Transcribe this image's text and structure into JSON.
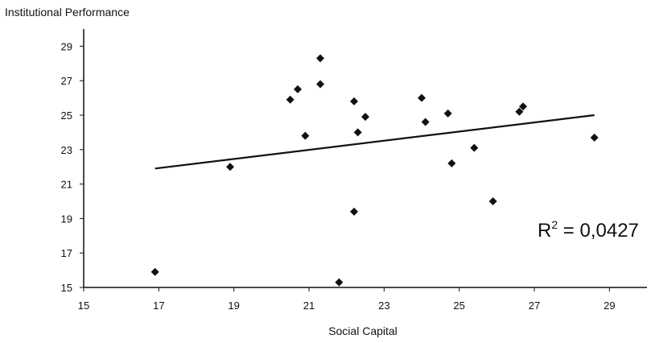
{
  "chart_data": {
    "type": "scatter",
    "title": "",
    "ylabel": "Institutional Performance",
    "xlabel": "Social Capital",
    "xlim": [
      15,
      30
    ],
    "ylim": [
      15,
      30
    ],
    "x_ticks": [
      "15",
      "17",
      "19",
      "21",
      "23",
      "25",
      "27",
      "29"
    ],
    "y_ticks": [
      "15",
      "17",
      "19",
      "21",
      "23",
      "25",
      "27",
      "29"
    ],
    "grid": false,
    "marker": "diamond",
    "marker_color": "#111111",
    "points": [
      {
        "x": 16.9,
        "y": 15.9
      },
      {
        "x": 18.9,
        "y": 22.0
      },
      {
        "x": 20.5,
        "y": 25.9
      },
      {
        "x": 20.7,
        "y": 26.5
      },
      {
        "x": 20.9,
        "y": 23.8
      },
      {
        "x": 21.3,
        "y": 28.3
      },
      {
        "x": 21.3,
        "y": 26.8
      },
      {
        "x": 21.8,
        "y": 15.3
      },
      {
        "x": 22.2,
        "y": 25.8
      },
      {
        "x": 22.2,
        "y": 19.4
      },
      {
        "x": 22.3,
        "y": 24.0
      },
      {
        "x": 22.5,
        "y": 24.9
      },
      {
        "x": 24.0,
        "y": 26.0
      },
      {
        "x": 24.1,
        "y": 24.6
      },
      {
        "x": 24.7,
        "y": 25.1
      },
      {
        "x": 24.8,
        "y": 22.2
      },
      {
        "x": 25.4,
        "y": 23.1
      },
      {
        "x": 25.9,
        "y": 20.0
      },
      {
        "x": 26.6,
        "y": 25.2
      },
      {
        "x": 26.7,
        "y": 25.5
      },
      {
        "x": 28.6,
        "y": 23.7
      }
    ],
    "trendline": {
      "x": [
        16.9,
        28.6
      ],
      "y": [
        21.9,
        25.0
      ]
    },
    "annotation": {
      "prefix": "R",
      "superscript": "2",
      "suffix": " = 0,0427"
    }
  }
}
